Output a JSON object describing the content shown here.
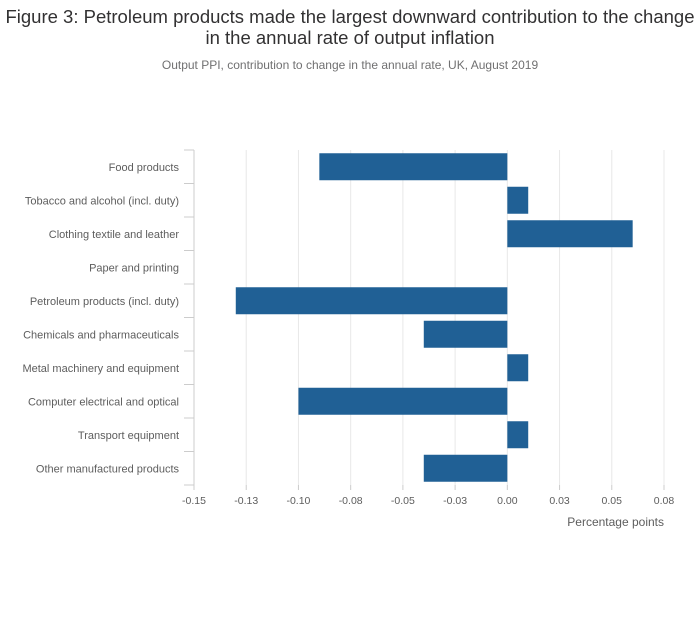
{
  "title": "Figure 3: Petroleum products made the largest downward contribution to the change in the annual rate of output inflation",
  "subtitle": "Output PPI, contribution to change in the annual rate, UK, August 2019",
  "colors": {
    "bar": "#206095",
    "grid": "#e8e8e8",
    "axis": "#cccccc",
    "text": "#5d5d5d"
  },
  "chart_data": {
    "type": "bar",
    "orientation": "horizontal",
    "title": "Figure 3: Petroleum products made the largest downward contribution to the change in the annual rate of output inflation",
    "subtitle": "Output PPI, contribution to change in the annual rate, UK, August 2019",
    "xlabel": "Percentage points",
    "ylabel": "",
    "categories": [
      "Food products",
      "Tobacco and alcohol (incl. duty)",
      "Clothing textile and leather",
      "Paper and printing",
      "Petroleum products (incl. duty)",
      "Chemicals and pharmaceuticals",
      "Metal machinery and equipment",
      "Computer electrical and optical",
      "Transport equipment",
      "Other manufactured products"
    ],
    "values": [
      -0.09,
      0.01,
      0.06,
      0.0,
      -0.13,
      -0.04,
      0.01,
      -0.1,
      0.01,
      -0.04
    ],
    "xlim": [
      -0.15,
      0.075
    ],
    "xticks": [
      -0.15,
      -0.125,
      -0.1,
      -0.075,
      -0.05,
      -0.025,
      0,
      0.025,
      0.05,
      0.075
    ],
    "xtick_labels": [
      "-0.15",
      "-0.13",
      "-0.10",
      "-0.08",
      "-0.05",
      "-0.03",
      "0.00",
      "0.03",
      "0.05",
      "0.08"
    ],
    "grid": true,
    "legend": "none"
  }
}
